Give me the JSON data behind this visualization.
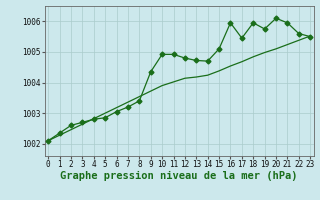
{
  "xlabel": "Graphe pression niveau de la mer (hPa)",
  "background_color": "#cce8ec",
  "grid_color": "#aacccc",
  "line_color": "#1a6e1a",
  "x_values": [
    0,
    1,
    2,
    3,
    4,
    5,
    6,
    7,
    8,
    9,
    10,
    11,
    12,
    13,
    14,
    15,
    16,
    17,
    18,
    19,
    20,
    21,
    22,
    23
  ],
  "y_series1": [
    1002.1,
    1002.35,
    1002.6,
    1002.7,
    1002.8,
    1002.85,
    1003.05,
    1003.2,
    1003.4,
    1004.35,
    1004.92,
    1004.92,
    1004.8,
    1004.72,
    1004.7,
    1005.1,
    1005.95,
    1005.45,
    1005.95,
    1005.75,
    1006.1,
    1005.95,
    1005.6,
    1005.5
  ],
  "y_series2": [
    1002.1,
    1002.28,
    1002.46,
    1002.64,
    1002.82,
    1003.0,
    1003.18,
    1003.36,
    1003.54,
    1003.72,
    1003.9,
    1004.02,
    1004.14,
    1004.18,
    1004.24,
    1004.38,
    1004.54,
    1004.68,
    1004.84,
    1004.98,
    1005.1,
    1005.24,
    1005.38,
    1005.52
  ],
  "ylim": [
    1001.6,
    1006.5
  ],
  "xlim": [
    -0.3,
    23.3
  ],
  "yticks": [
    1002,
    1003,
    1004,
    1005,
    1006
  ],
  "xticks": [
    0,
    1,
    2,
    3,
    4,
    5,
    6,
    7,
    8,
    9,
    10,
    11,
    12,
    13,
    14,
    15,
    16,
    17,
    18,
    19,
    20,
    21,
    22,
    23
  ],
  "tick_fontsize": 5.5,
  "xlabel_fontsize": 7.5,
  "marker_size": 2.5,
  "line_width": 0.9
}
